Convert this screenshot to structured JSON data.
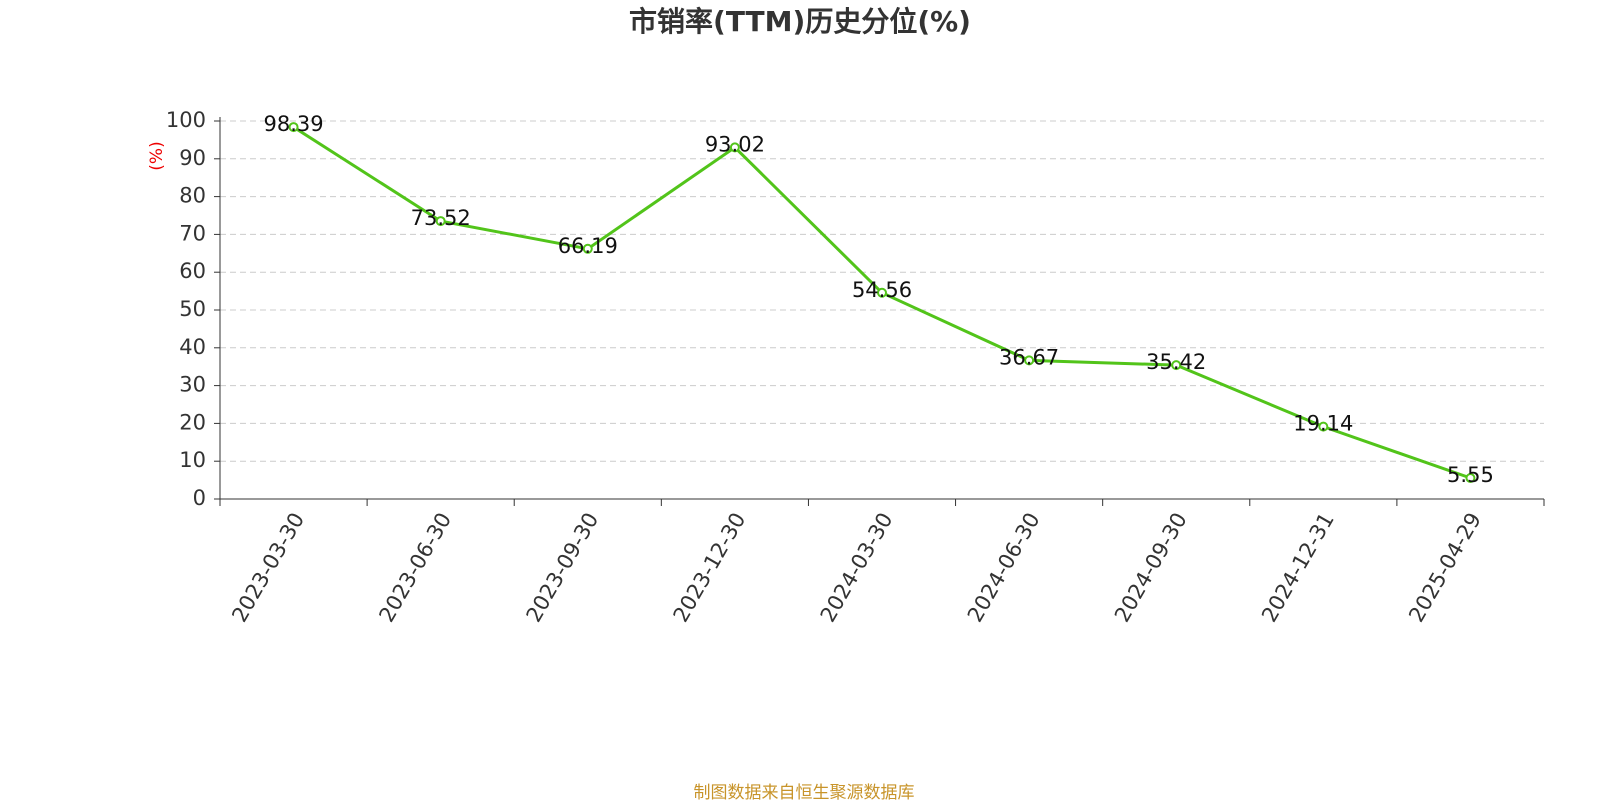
{
  "chart_data": {
    "type": "line",
    "title": "市销率(TTM)历史分位(%)",
    "y_axis_label": "(%)",
    "source": "制图数据来自恒生聚源数据库",
    "categories": [
      "2023-03-30",
      "2023-06-30",
      "2023-09-30",
      "2023-12-30",
      "2024-03-30",
      "2024-06-30",
      "2024-09-30",
      "2024-12-31",
      "2025-04-29"
    ],
    "series": [
      {
        "name": "市销率(TTM)历史分位",
        "color": "#52c41a",
        "values": [
          98.39,
          73.52,
          66.19,
          93.02,
          54.56,
          36.67,
          35.42,
          19.14,
          5.55
        ]
      }
    ],
    "ylim": [
      0,
      100
    ],
    "yticks": [
      0,
      10,
      20,
      30,
      40,
      50,
      60,
      70,
      80,
      90,
      100
    ],
    "grid": true
  }
}
